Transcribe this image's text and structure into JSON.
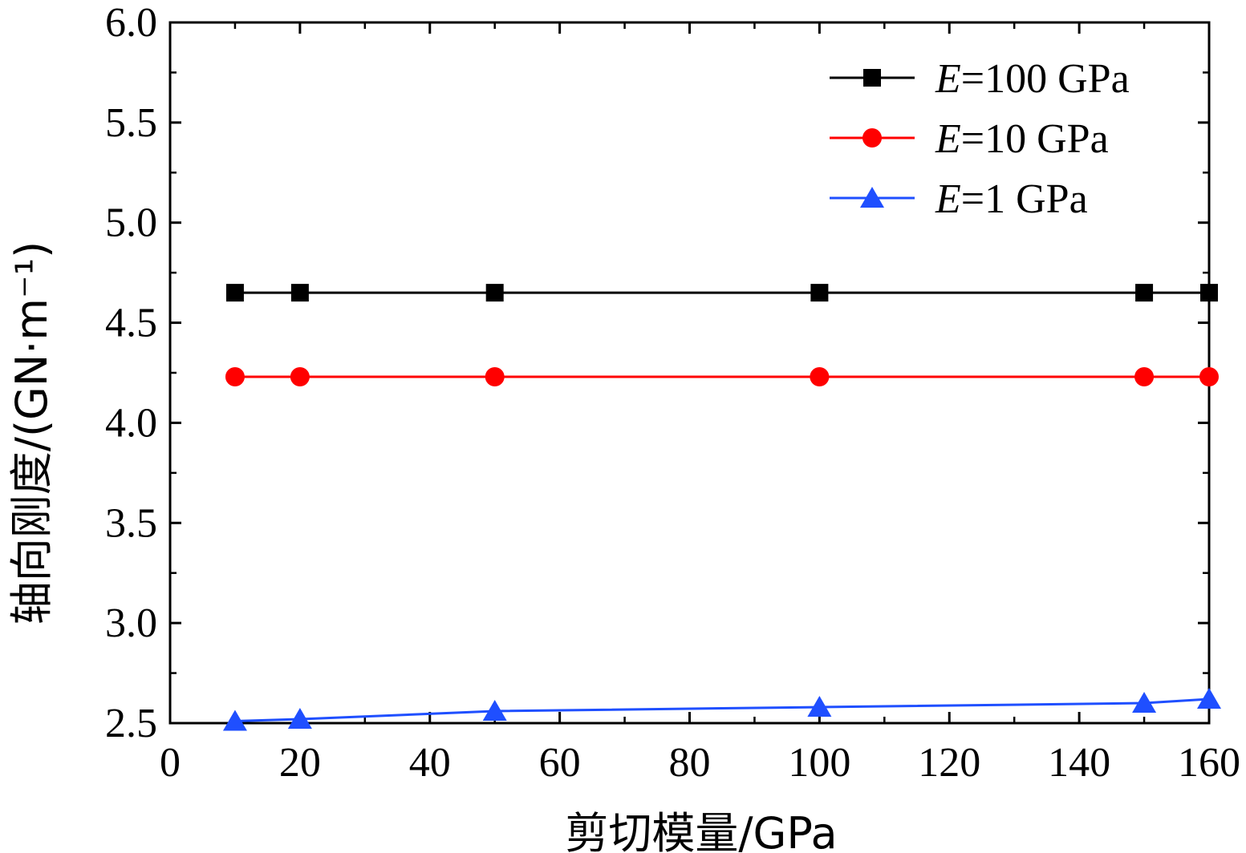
{
  "chart_data": {
    "type": "line",
    "xlabel": "剪切模量/GPa",
    "ylabel": "轴向刚度/(GN·m⁻¹)",
    "xlim": [
      0,
      160
    ],
    "ylim": [
      2.5,
      6.0
    ],
    "xticks": [
      0,
      20,
      40,
      60,
      80,
      100,
      120,
      140,
      160
    ],
    "yticks": [
      "2.5",
      "3.0",
      "3.5",
      "4.0",
      "4.5",
      "5.0",
      "5.5",
      "6.0"
    ],
    "x": [
      10,
      20,
      50,
      100,
      150,
      160
    ],
    "series": [
      {
        "name": "E=100 GPa",
        "name_italic": "E",
        "name_rest": "=100 GPa",
        "color": "#000000",
        "marker": "square",
        "values": [
          4.65,
          4.65,
          4.65,
          4.65,
          4.65,
          4.65
        ]
      },
      {
        "name": "E=10 GPa",
        "name_italic": "E",
        "name_rest": "=10 GPa",
        "color": "#ff0000",
        "marker": "circle",
        "values": [
          4.23,
          4.23,
          4.23,
          4.23,
          4.23,
          4.23
        ]
      },
      {
        "name": "E=1 GPa",
        "name_italic": "E",
        "name_rest": "=1 GPa",
        "color": "#1f4fff",
        "marker": "triangle",
        "values": [
          2.51,
          2.52,
          2.56,
          2.58,
          2.6,
          2.62
        ]
      }
    ],
    "legend": "top-right",
    "grid": false
  }
}
